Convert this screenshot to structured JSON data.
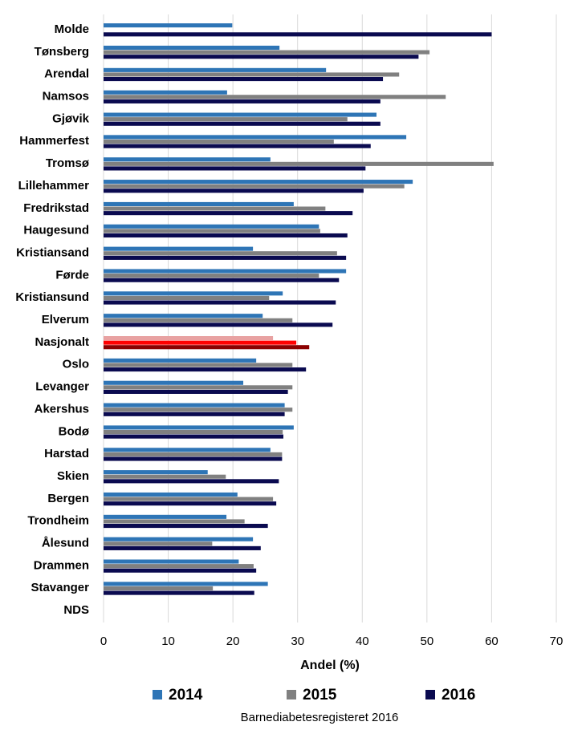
{
  "chart_data": {
    "type": "hbar",
    "categories": [
      "Molde",
      "Tønsberg",
      "Arendal",
      "Namsos",
      "Gjøvik",
      "Hammerfest",
      "Tromsø",
      "Lillehammer",
      "Fredrikstad",
      "Haugesund",
      "Kristiansand",
      "Førde",
      "Kristiansund",
      "Elverum",
      "Nasjonalt",
      "Oslo",
      "Levanger",
      "Akershus",
      "Bodø",
      "Harstad",
      "Skien",
      "Bergen",
      "Trondheim",
      "Ålesund",
      "Drammen",
      "Stavanger",
      "NDS"
    ],
    "series": [
      {
        "name": "2014",
        "color": "#2e75b6",
        "highlight_color": "#e8a2a2",
        "values": [
          19.9,
          27.2,
          34.4,
          19.1,
          42.2,
          46.8,
          25.8,
          47.8,
          29.4,
          33.3,
          23.1,
          37.5,
          27.7,
          24.6,
          26.2,
          23.6,
          21.6,
          28.0,
          29.4,
          25.8,
          16.1,
          20.7,
          19.0,
          23.1,
          20.9,
          25.4,
          null
        ]
      },
      {
        "name": "2015",
        "color": "#808080",
        "highlight_color": "#ff0000",
        "values": [
          null,
          50.4,
          45.7,
          52.9,
          37.7,
          35.6,
          60.3,
          46.5,
          34.3,
          33.5,
          36.1,
          33.3,
          25.6,
          29.2,
          29.8,
          29.2,
          29.2,
          29.2,
          27.7,
          27.6,
          18.9,
          26.2,
          21.8,
          16.8,
          23.2,
          16.9,
          null
        ]
      },
      {
        "name": "2016",
        "color": "#0a0a50",
        "highlight_color": "#8b0000",
        "values": [
          60.0,
          48.7,
          43.2,
          42.8,
          42.8,
          41.3,
          40.5,
          40.2,
          38.5,
          37.7,
          37.5,
          36.4,
          35.9,
          35.4,
          31.8,
          31.3,
          28.5,
          28.0,
          27.8,
          27.6,
          27.1,
          26.7,
          25.4,
          24.3,
          23.6,
          23.3,
          null
        ]
      }
    ],
    "highlight_index": 14,
    "xlim": [
      0,
      70
    ],
    "xticks": [
      0,
      10,
      20,
      30,
      40,
      50,
      60,
      70
    ],
    "grid": true,
    "x_label": "Andel (%)",
    "source": "Barnediabetesregisteret 2016"
  }
}
